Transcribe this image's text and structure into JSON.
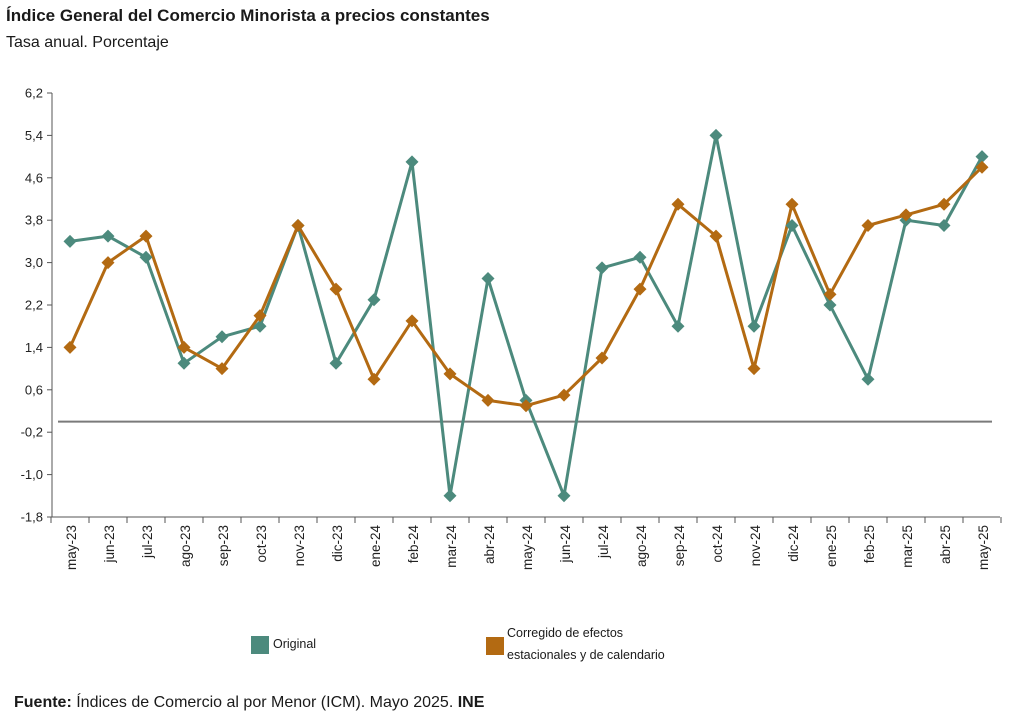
{
  "chart_data": {
    "type": "line",
    "title": "Índice General del Comercio Minorista a precios constantes",
    "subtitle": "Tasa anual. Porcentaje",
    "categories": [
      "may-23",
      "jun-23",
      "jul-23",
      "ago-23",
      "sep-23",
      "oct-23",
      "nov-23",
      "dic-23",
      "ene-24",
      "feb-24",
      "mar-24",
      "abr-24",
      "may-24",
      "jun-24",
      "jul-24",
      "ago-24",
      "sep-24",
      "oct-24",
      "nov-24",
      "dic-24",
      "ene-25",
      "feb-25",
      "mar-25",
      "abr-25",
      "may-25"
    ],
    "ylim": [
      -1.8,
      6.2
    ],
    "yticks": [
      "6,2",
      "5,4",
      "4,6",
      "3,8",
      "3,0",
      "2,2",
      "1,4",
      "0,6",
      "-0,2",
      "-1,0",
      "-1,8"
    ],
    "ytick_values": [
      6.2,
      5.4,
      4.6,
      3.8,
      3.0,
      2.2,
      1.4,
      0.6,
      -0.2,
      -1.0,
      -1.8
    ],
    "reference_line": 0,
    "series": [
      {
        "name": "Original",
        "color": "#4c8a7d",
        "values": [
          3.4,
          3.5,
          3.1,
          1.1,
          1.6,
          1.8,
          3.7,
          1.1,
          2.3,
          4.9,
          -1.4,
          2.7,
          0.4,
          -1.4,
          2.9,
          3.1,
          1.8,
          5.4,
          1.8,
          3.7,
          2.2,
          0.8,
          3.8,
          3.7,
          5.0
        ]
      },
      {
        "name": "Corregido de efectos estacionales y de calendario",
        "color": "#b36a12",
        "values": [
          1.4,
          3.0,
          3.5,
          1.4,
          1.0,
          2.0,
          3.7,
          2.5,
          0.8,
          1.9,
          0.9,
          0.4,
          0.3,
          0.5,
          1.2,
          2.5,
          4.1,
          3.5,
          1.0,
          4.1,
          2.4,
          3.7,
          3.9,
          4.1,
          4.8
        ]
      }
    ],
    "legend": {
      "original_label": "Original",
      "corr_label_line1": "Corregido de efectos",
      "corr_label_line2": "estacionales y de calendario"
    }
  },
  "source": {
    "label": "Fuente:",
    "text": "Índices de Comercio al por Menor (ICM).  Mayo 2025.",
    "org": "INE"
  }
}
